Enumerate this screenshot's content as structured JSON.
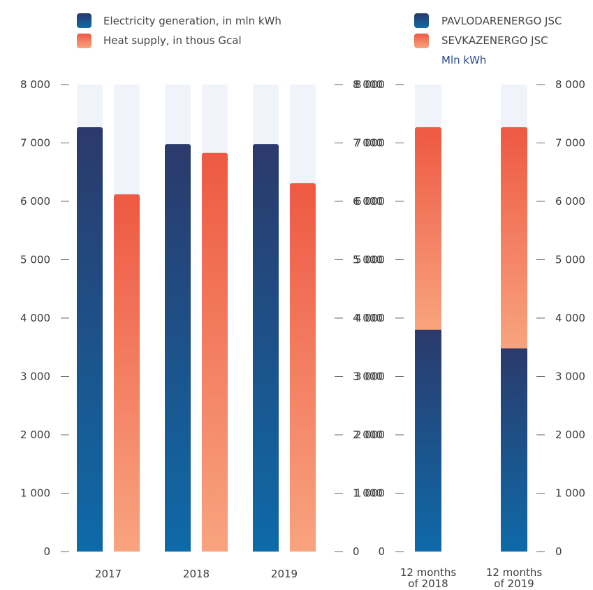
{
  "colors": {
    "electricity_top": "#2b3a6b",
    "electricity_bottom": "#0e6aa8",
    "heat_top": "#ee5a44",
    "heat_bottom": "#f8a47e",
    "track": "#f0f3fa",
    "axis": "#666666"
  },
  "legend_left": [
    {
      "label": "Electricity generation, in mln kWh",
      "color": "electricity"
    },
    {
      "label": "Heat supply, in thous Gcal",
      "color": "heat"
    }
  ],
  "legend_right": [
    {
      "label": "PAVLODARENERGO JSC",
      "color": "electricity"
    },
    {
      "label": "SEVKAZENERGO JSC",
      "color": "heat"
    }
  ],
  "right_unit": "Mln kWh",
  "chart_data": [
    {
      "type": "bar",
      "categories": [
        "2017",
        "2018",
        "2019"
      ],
      "series": [
        {
          "name": "Electricity generation, in mln kWh",
          "values": [
            7270,
            6980,
            6980
          ]
        },
        {
          "name": "Heat supply, in thous Gcal",
          "values": [
            6120,
            6830,
            6310
          ]
        }
      ],
      "ylim": [
        0,
        8000
      ],
      "yticks": [
        "0",
        "1 000",
        "2 000",
        "3 000",
        "4 000",
        "5 000",
        "6 000",
        "7 000",
        "8 000"
      ],
      "grid": false
    },
    {
      "type": "bar",
      "stacked": true,
      "categories": [
        "12 months of 2018",
        "12 months of 2019"
      ],
      "series": [
        {
          "name": "PAVLODARENERGO JSC",
          "values": [
            3800,
            3480
          ]
        },
        {
          "name": "SEVKAZENERGO JSC",
          "values": [
            3470,
            3790
          ]
        }
      ],
      "ylim": [
        0,
        8000
      ],
      "ylabel": "Mln kWh",
      "yticks": [
        "0",
        "1 000",
        "2 000",
        "3 000",
        "4 000",
        "5 000",
        "6 000",
        "7 000",
        "8 000"
      ],
      "grid": false
    }
  ]
}
